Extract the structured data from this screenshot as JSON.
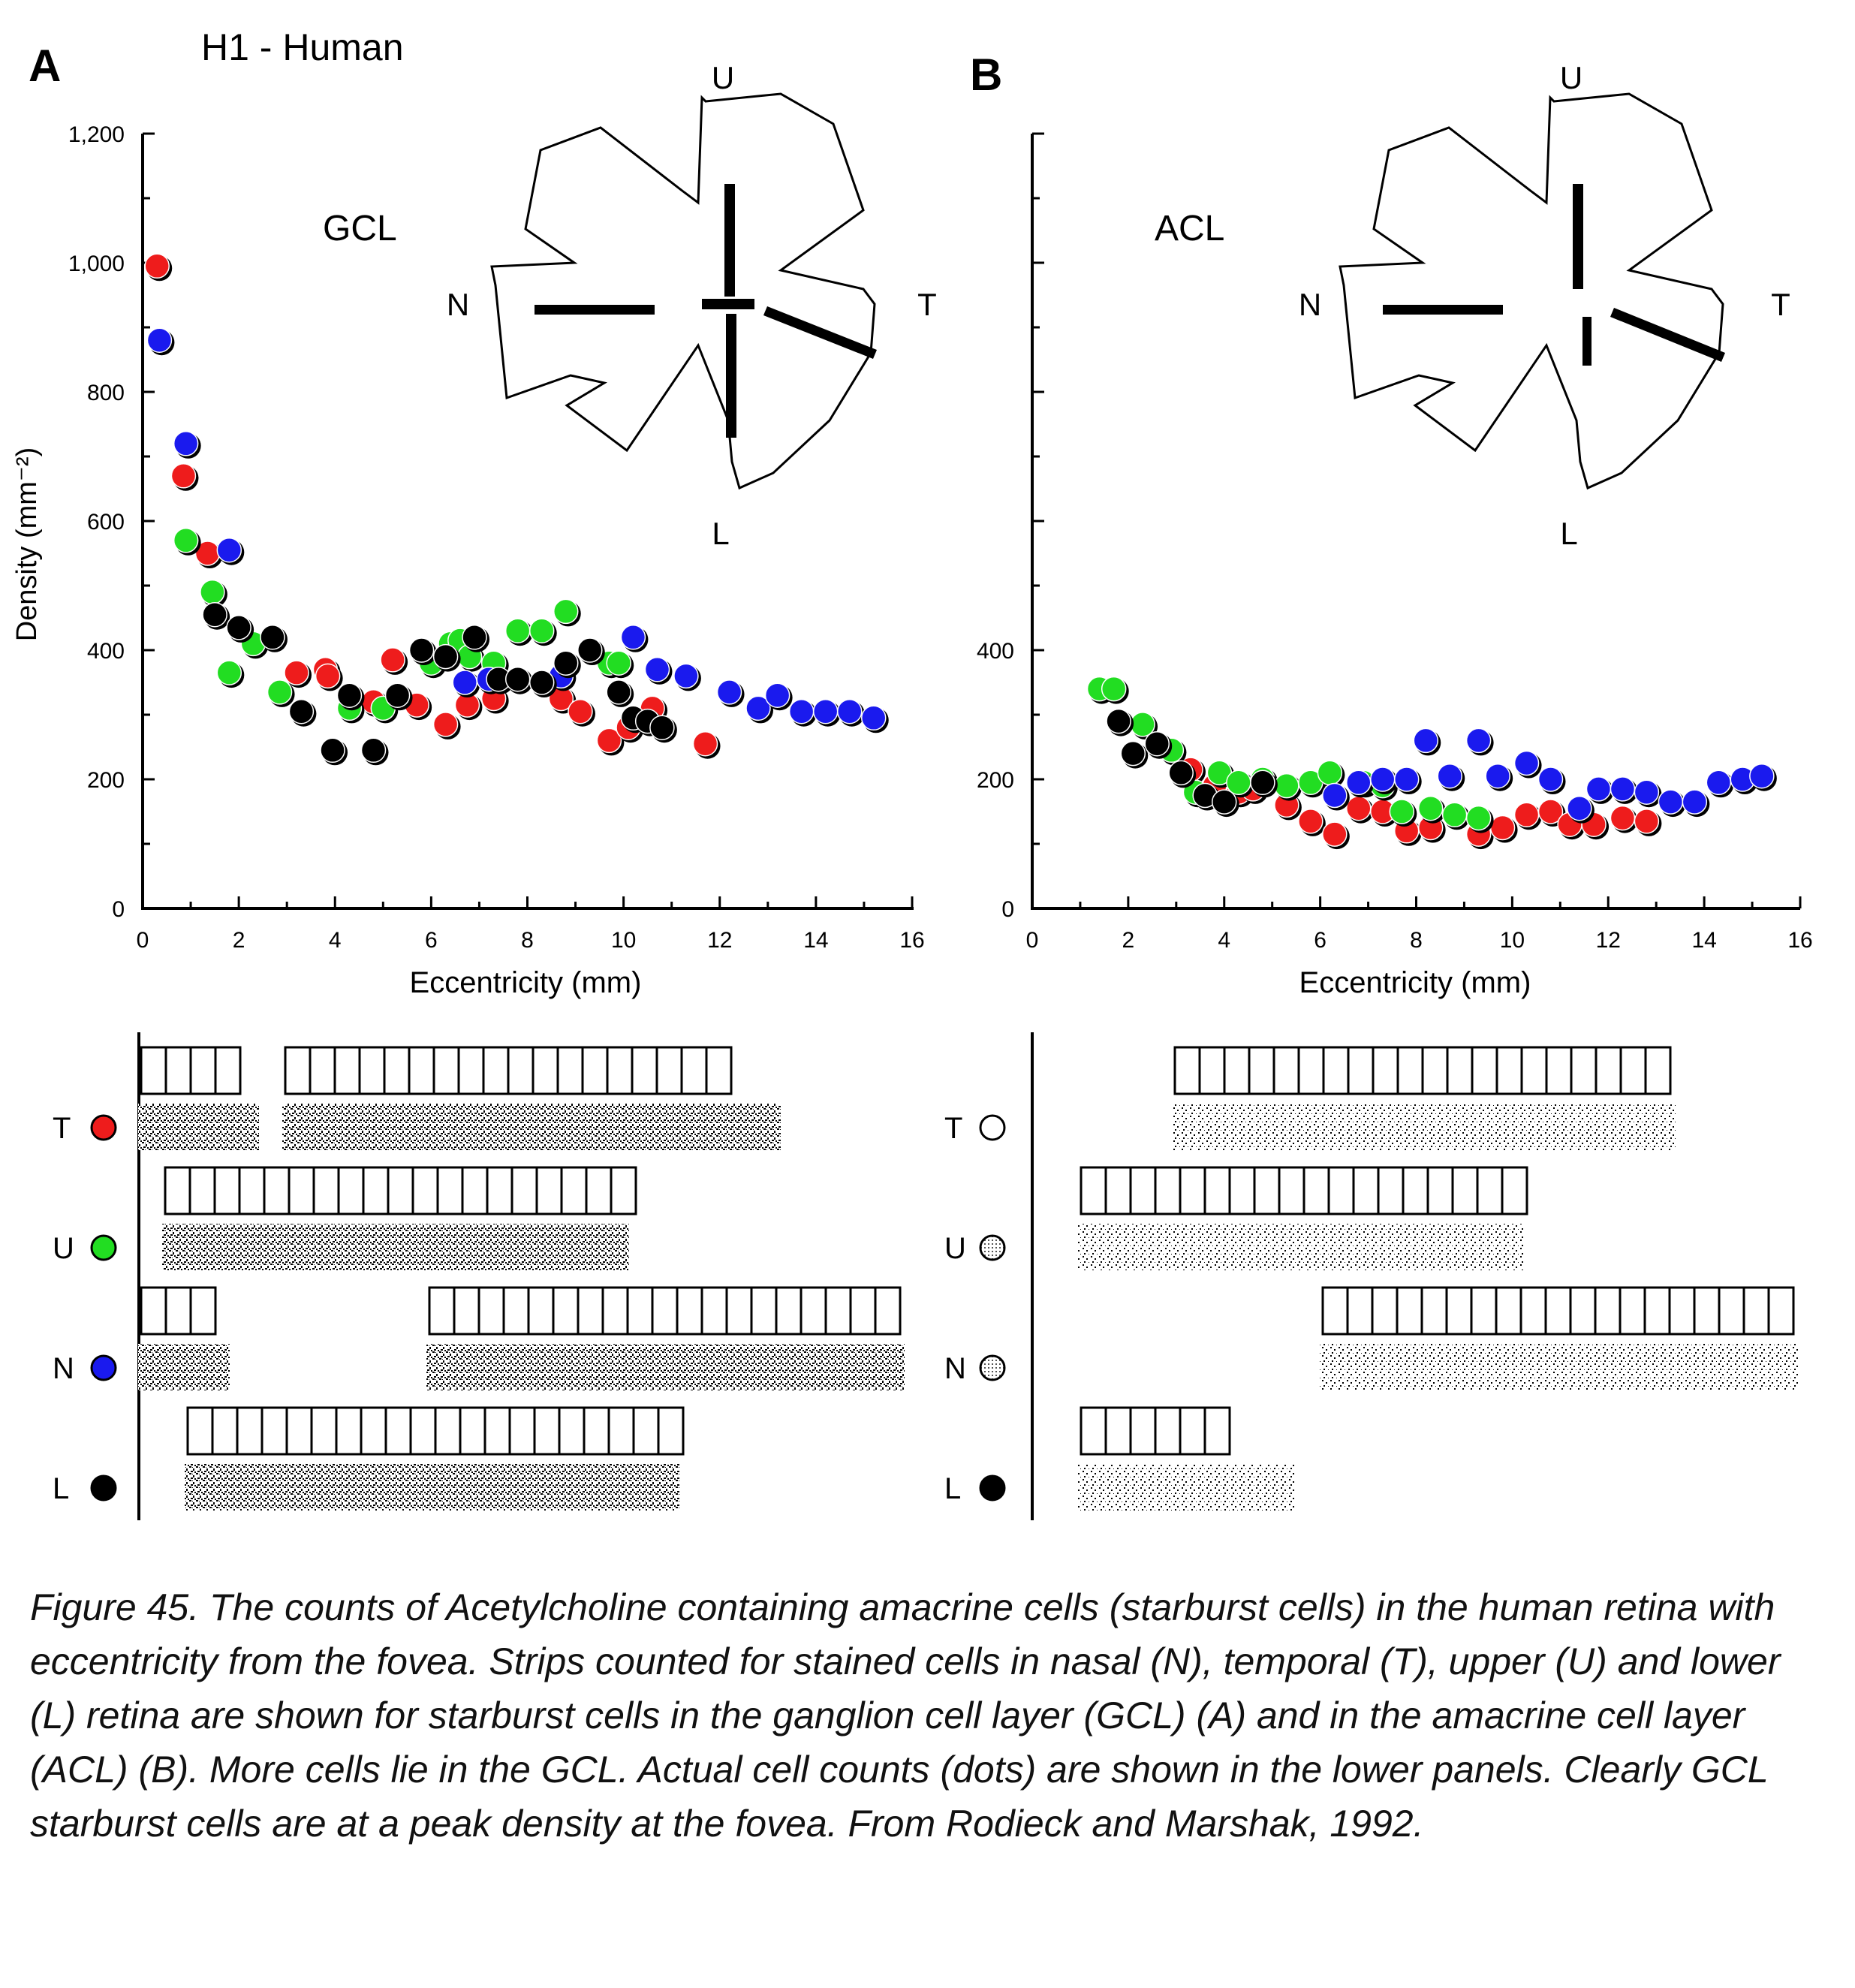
{
  "figure": {
    "panel_a_letter": "A",
    "panel_b_letter": "B",
    "subject_label": "H1 - Human"
  },
  "caption": "Figure 45.  The counts of Acetylcholine containing amacrine cells (starburst cells) in the human retina with eccentricity from the fovea. Strips counted for stained cells in nasal (N), temporal (T), upper (U) and lower (L) retina are shown for starburst cells in the ganglion cell layer (GCL) (A) and in the amacrine cell layer (ACL) (B). More cells lie in the GCL. Actual cell counts (dots) are shown in the lower panels. Clearly GCL starburst cells are at a peak density at the fovea. From Rodieck and Marshak, 1992.",
  "retina_labels": {
    "upper": "U",
    "lower": "L",
    "nasal": "N",
    "temporal": "T"
  },
  "colors": {
    "T": "#ee1c1c",
    "U": "#22dd22",
    "N": "#1a1aee",
    "L": "#000000"
  },
  "strip_rows": [
    "T",
    "U",
    "N",
    "L"
  ],
  "chart_data": [
    {
      "panel": "A",
      "type": "scatter",
      "title": "GCL",
      "xlabel": "Eccentricity (mm)",
      "ylabel": "Density (mm⁻²)",
      "xlim": [
        0,
        16
      ],
      "ylim": [
        0,
        1200
      ],
      "xticks": [
        0,
        2,
        4,
        6,
        8,
        10,
        12,
        14,
        16
      ],
      "yticks": [
        0,
        200,
        400,
        600,
        800,
        1000,
        1200
      ],
      "ytick_labels": [
        "0",
        "200",
        "400",
        "600",
        "800",
        "1,000",
        "1,200"
      ],
      "series": [
        {
          "name": "T",
          "color": "#ee1c1c",
          "points": [
            [
              0.3,
              995
            ],
            [
              0.85,
              670
            ],
            [
              1.35,
              550
            ],
            [
              3.2,
              365
            ],
            [
              3.8,
              370
            ],
            [
              3.85,
              360
            ],
            [
              4.8,
              320
            ],
            [
              5.2,
              385
            ],
            [
              5.7,
              315
            ],
            [
              6.3,
              285
            ],
            [
              6.75,
              315
            ],
            [
              7.3,
              325
            ],
            [
              8.7,
              325
            ],
            [
              9.1,
              305
            ],
            [
              9.7,
              260
            ],
            [
              10.1,
              280
            ],
            [
              10.6,
              310
            ],
            [
              11.7,
              255
            ]
          ]
        },
        {
          "name": "U",
          "color": "#22dd22",
          "points": [
            [
              0.9,
              570
            ],
            [
              1.45,
              490
            ],
            [
              1.8,
              365
            ],
            [
              2.3,
              410
            ],
            [
              2.85,
              335
            ],
            [
              4.3,
              310
            ],
            [
              5.0,
              310
            ],
            [
              6.0,
              380
            ],
            [
              6.4,
              410
            ],
            [
              6.6,
              415
            ],
            [
              6.8,
              390
            ],
            [
              7.3,
              380
            ],
            [
              7.8,
              430
            ],
            [
              8.3,
              430
            ],
            [
              8.8,
              460
            ],
            [
              9.7,
              380
            ],
            [
              9.9,
              380
            ]
          ]
        },
        {
          "name": "N",
          "color": "#1a1aee",
          "points": [
            [
              0.35,
              880
            ],
            [
              0.9,
              720
            ],
            [
              1.8,
              555
            ],
            [
              6.7,
              350
            ],
            [
              7.2,
              355
            ],
            [
              8.7,
              360
            ],
            [
              10.2,
              420
            ],
            [
              10.7,
              370
            ],
            [
              11.3,
              360
            ],
            [
              12.2,
              335
            ],
            [
              12.8,
              310
            ],
            [
              13.2,
              330
            ],
            [
              13.7,
              305
            ],
            [
              14.2,
              305
            ],
            [
              14.7,
              305
            ],
            [
              15.2,
              295
            ]
          ]
        },
        {
          "name": "L",
          "color": "#000000",
          "points": [
            [
              1.5,
              455
            ],
            [
              2.0,
              435
            ],
            [
              2.7,
              420
            ],
            [
              3.3,
              305
            ],
            [
              3.95,
              245
            ],
            [
              4.3,
              330
            ],
            [
              4.8,
              245
            ],
            [
              5.3,
              330
            ],
            [
              5.8,
              400
            ],
            [
              6.3,
              390
            ],
            [
              6.9,
              420
            ],
            [
              7.4,
              355
            ],
            [
              7.8,
              355
            ],
            [
              8.3,
              350
            ],
            [
              8.8,
              380
            ],
            [
              9.3,
              400
            ],
            [
              9.9,
              335
            ],
            [
              10.2,
              295
            ],
            [
              10.5,
              290
            ],
            [
              10.8,
              280
            ]
          ]
        }
      ]
    },
    {
      "panel": "B",
      "type": "scatter",
      "title": "ACL",
      "xlabel": "Eccentricity (mm)",
      "ylabel": "",
      "xlim": [
        0,
        16
      ],
      "ylim": [
        0,
        1200
      ],
      "xticks": [
        0,
        2,
        4,
        6,
        8,
        10,
        12,
        14,
        16
      ],
      "yticks": [
        0,
        200,
        400
      ],
      "ytick_labels": [
        "0",
        "200",
        "400"
      ],
      "series": [
        {
          "name": "T",
          "color": "#ee1c1c",
          "points": [
            [
              3.3,
              215
            ],
            [
              3.8,
              190
            ],
            [
              4.3,
              180
            ],
            [
              4.6,
              185
            ],
            [
              5.3,
              160
            ],
            [
              5.8,
              135
            ],
            [
              6.3,
              115
            ],
            [
              6.8,
              155
            ],
            [
              7.3,
              150
            ],
            [
              7.8,
              120
            ],
            [
              8.3,
              125
            ],
            [
              9.3,
              115
            ],
            [
              9.8,
              125
            ],
            [
              10.3,
              145
            ],
            [
              10.8,
              150
            ],
            [
              11.2,
              130
            ],
            [
              11.7,
              130
            ],
            [
              12.3,
              140
            ],
            [
              12.8,
              135
            ]
          ]
        },
        {
          "name": "U",
          "color": "#22dd22",
          "points": [
            [
              1.4,
              340
            ],
            [
              1.7,
              340
            ],
            [
              2.3,
              285
            ],
            [
              2.9,
              245
            ],
            [
              3.4,
              180
            ],
            [
              3.9,
              210
            ],
            [
              4.3,
              195
            ],
            [
              4.8,
              200
            ],
            [
              5.3,
              190
            ],
            [
              5.8,
              195
            ],
            [
              6.2,
              210
            ],
            [
              6.9,
              195
            ],
            [
              7.3,
              190
            ],
            [
              7.7,
              150
            ],
            [
              8.3,
              155
            ],
            [
              8.8,
              145
            ],
            [
              9.3,
              140
            ]
          ]
        },
        {
          "name": "N",
          "color": "#1a1aee",
          "points": [
            [
              6.3,
              175
            ],
            [
              6.8,
              195
            ],
            [
              7.3,
              200
            ],
            [
              7.8,
              200
            ],
            [
              8.2,
              260
            ],
            [
              8.7,
              205
            ],
            [
              9.3,
              260
            ],
            [
              9.7,
              205
            ],
            [
              10.3,
              225
            ],
            [
              10.8,
              200
            ],
            [
              11.4,
              155
            ],
            [
              11.8,
              185
            ],
            [
              12.3,
              185
            ],
            [
              12.8,
              180
            ],
            [
              13.3,
              165
            ],
            [
              13.8,
              165
            ],
            [
              14.3,
              195
            ],
            [
              14.8,
              200
            ],
            [
              15.2,
              205
            ]
          ]
        },
        {
          "name": "L",
          "color": "#000000",
          "points": [
            [
              1.8,
              290
            ],
            [
              2.1,
              240
            ],
            [
              2.6,
              255
            ],
            [
              3.1,
              210
            ],
            [
              3.6,
              175
            ],
            [
              4.0,
              165
            ],
            [
              4.8,
              195
            ]
          ]
        }
      ]
    }
  ]
}
